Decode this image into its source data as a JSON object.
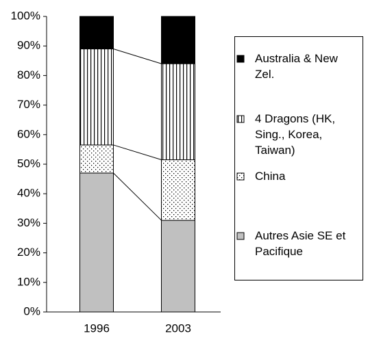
{
  "chart_data": {
    "type": "stacked_bar_100",
    "categories": [
      "1996",
      "2003"
    ],
    "series": [
      {
        "name": "Autres Asie SE et Pacifique",
        "color": "#c0c0c0",
        "pattern": "solid",
        "values": [
          47,
          31
        ]
      },
      {
        "name": "China",
        "color": "#ffffff",
        "pattern": "dots",
        "values": [
          9.5,
          20.5
        ]
      },
      {
        "name": "4 Dragons (HK, Sing., Korea, Taiwan)",
        "color": "#ffffff",
        "pattern": "vlines",
        "values": [
          32.5,
          32.5
        ]
      },
      {
        "name": "Australia & New Zel.",
        "color": "#000000",
        "pattern": "solid",
        "values": [
          11,
          16
        ]
      }
    ],
    "ylim": [
      0,
      100
    ],
    "yticks": [
      {
        "value": 0,
        "label": "0%"
      },
      {
        "value": 10,
        "label": "10%"
      },
      {
        "value": 20,
        "label": "20%"
      },
      {
        "value": 30,
        "label": "30%"
      },
      {
        "value": 40,
        "label": "40%"
      },
      {
        "value": 50,
        "label": "50%"
      },
      {
        "value": 60,
        "label": "60%"
      },
      {
        "value": 70,
        "label": "70%"
      },
      {
        "value": 80,
        "label": "80%"
      },
      {
        "value": 90,
        "label": "90%"
      },
      {
        "value": 100,
        "label": "100%"
      }
    ],
    "series_lines": true,
    "legend": "right"
  }
}
